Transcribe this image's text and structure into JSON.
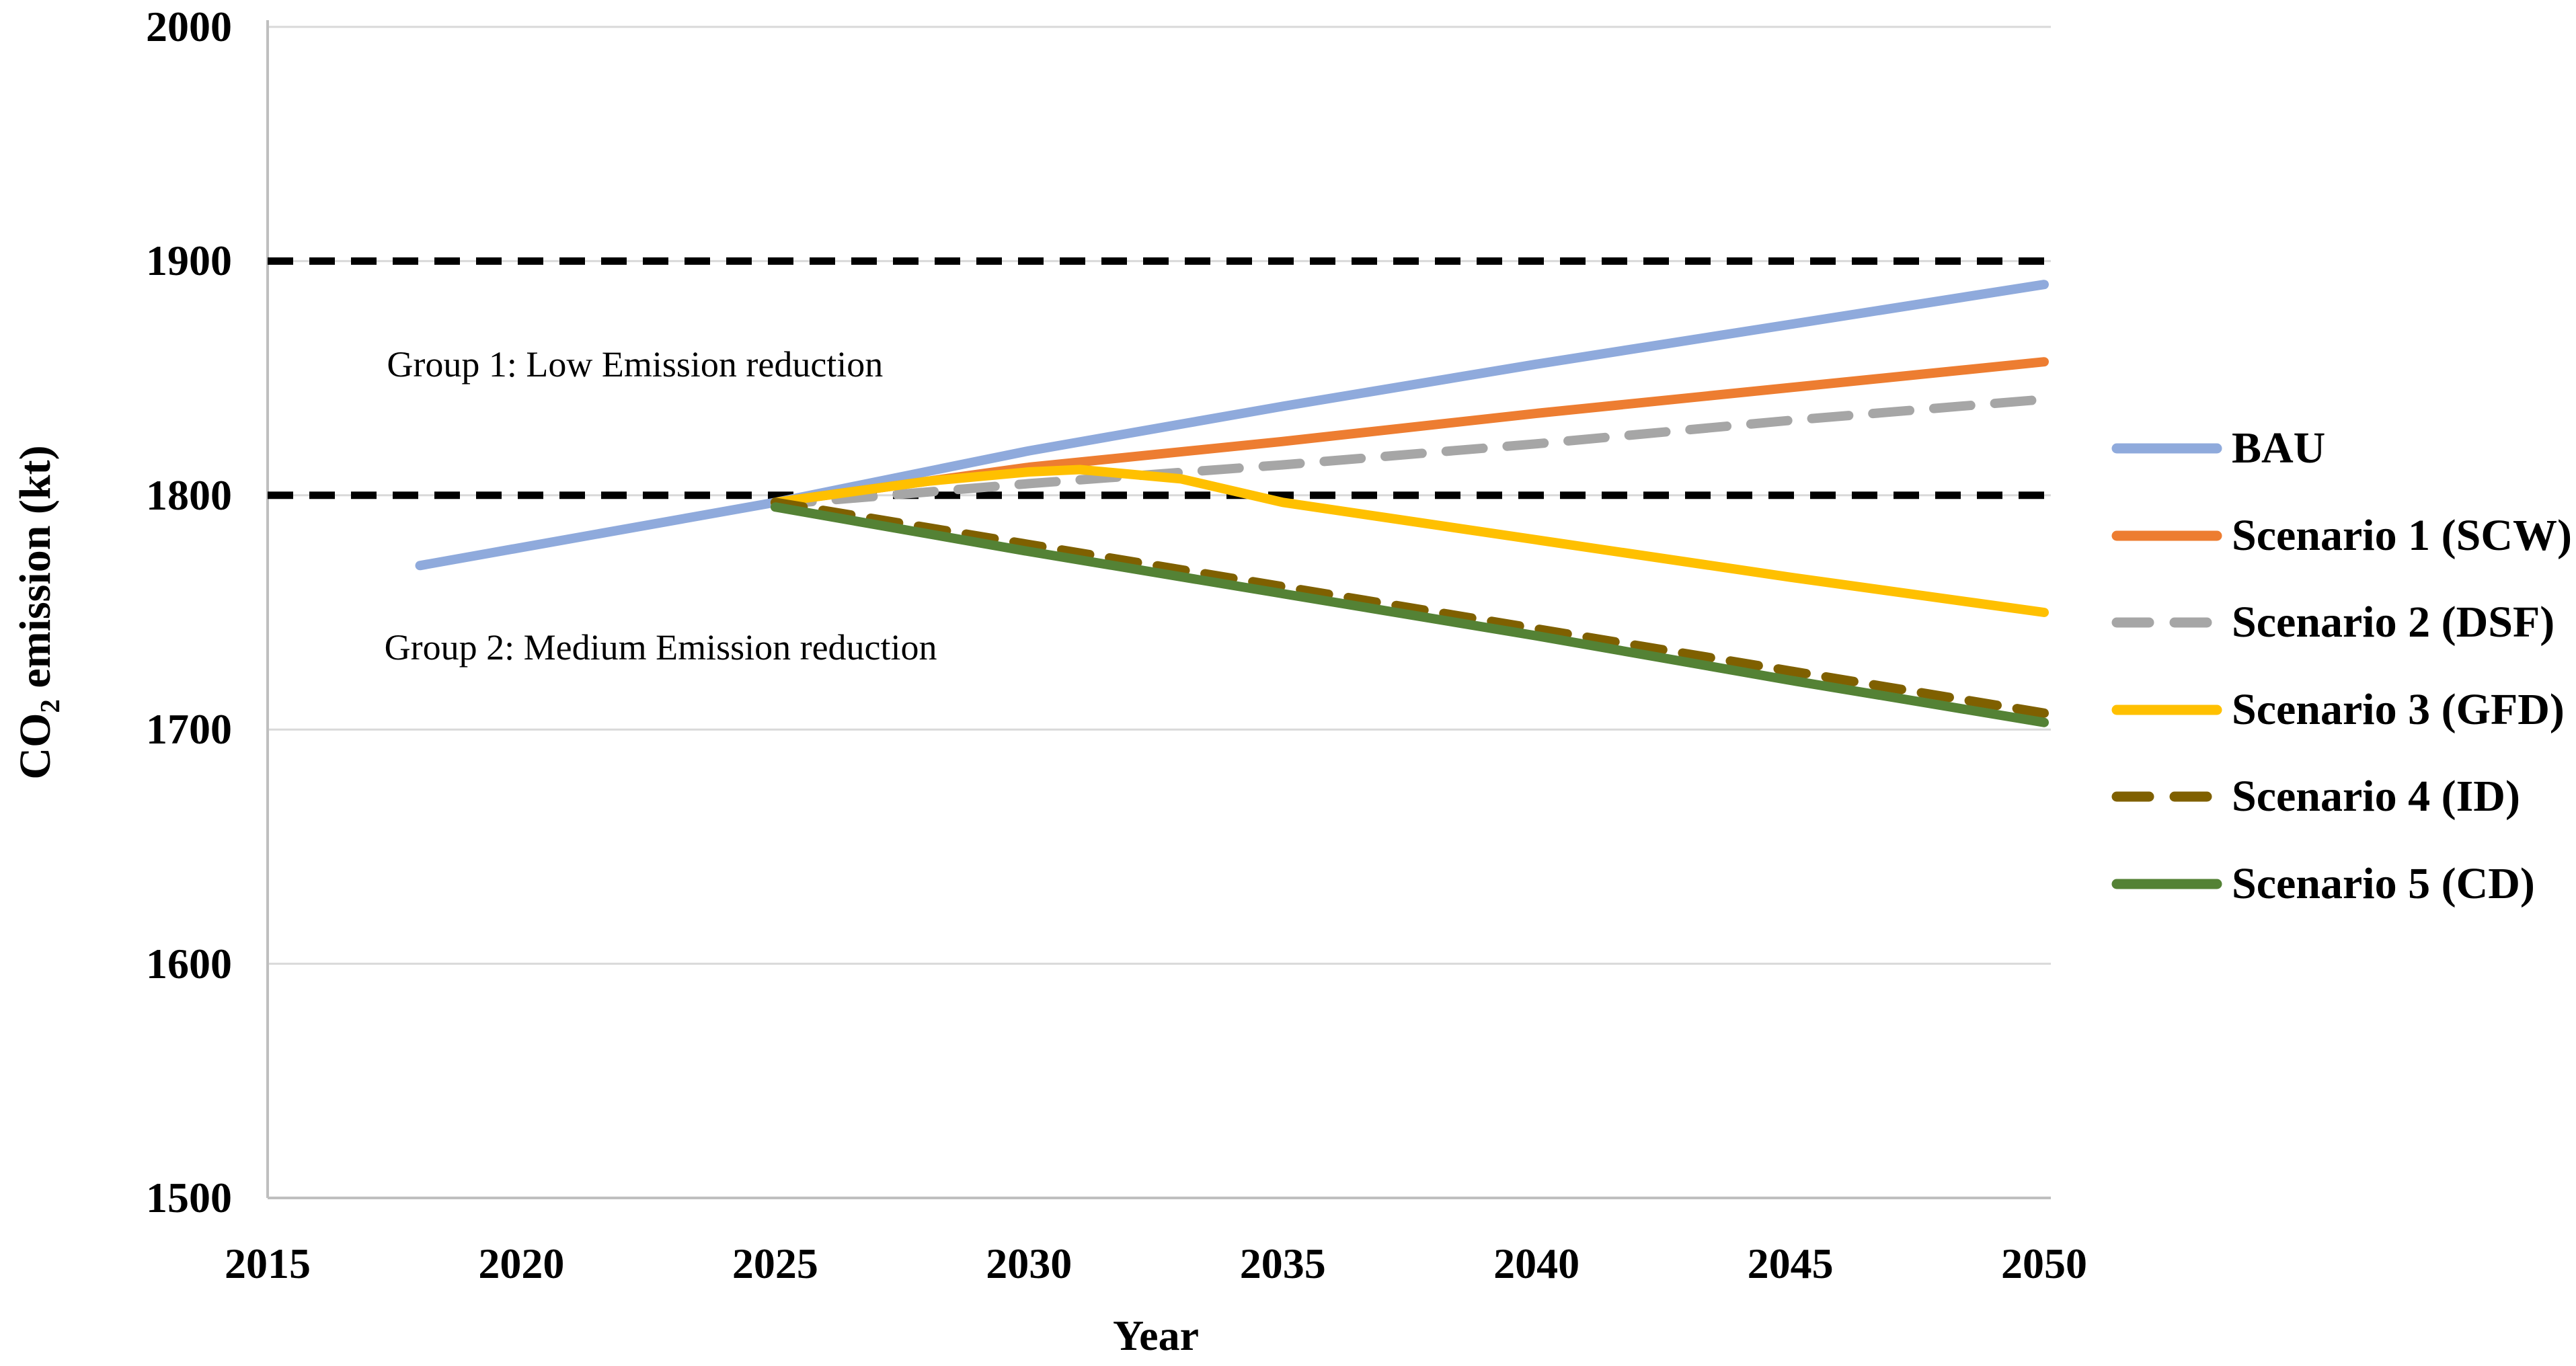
{
  "figure": {
    "x_axis_title": "Year",
    "y_axis_title_prefix": "CO",
    "y_axis_title_subscript": "2",
    "y_axis_title_suffix": " emission (kt)"
  },
  "colors": {
    "background": "#ffffff",
    "gridline": "#d9d9d9",
    "axis_line": "#bfbfbf",
    "reference_line": "#000000",
    "text": "#000000",
    "bau": "#8faadc",
    "scenario1": "#ed7d31",
    "scenario2": "#a6a6a6",
    "scenario3": "#ffc000",
    "scenario4": "#7f6000",
    "scenario5": "#548235"
  },
  "chart_data": {
    "type": "line",
    "title": "",
    "xlabel": "Year",
    "ylabel": "CO2 emission (kt)",
    "xlim": [
      2015,
      2050
    ],
    "ylim": [
      1500,
      2000
    ],
    "x_ticks": [
      "2015",
      "2020",
      "2025",
      "2030",
      "2035",
      "2040",
      "2045",
      "2050"
    ],
    "y_ticks": [
      "1500",
      "1600",
      "1700",
      "1800",
      "1900",
      "2000"
    ],
    "grid": "horizontal",
    "legend_position": "right",
    "reference_lines": [
      {
        "name": "upper-threshold",
        "value": 1900,
        "style": "dashed",
        "color_key": "reference_line"
      },
      {
        "name": "lower-threshold",
        "value": 1800,
        "style": "dashed",
        "color_key": "reference_line"
      }
    ],
    "annotations": [
      {
        "name": "group-1-label",
        "text": "Group 1: Low Emission reduction",
        "x": 2017.35,
        "y": 1856
      },
      {
        "name": "group-2-label",
        "text": "Group 2: Medium Emission reduction",
        "x": 2017.3,
        "y": 1735
      }
    ],
    "series": [
      {
        "name": "BAU",
        "key": "bau",
        "color_key": "bau",
        "style": "solid",
        "points": [
          [
            2018,
            1770
          ],
          [
            2025,
            1797
          ],
          [
            2030,
            1819
          ],
          [
            2035,
            1838
          ],
          [
            2040,
            1856
          ],
          [
            2045,
            1873
          ],
          [
            2050,
            1890
          ]
        ]
      },
      {
        "name": "Scenario 1 (SCW)",
        "key": "scenario1",
        "color_key": "scenario1",
        "style": "solid",
        "points": [
          [
            2025,
            1797
          ],
          [
            2030,
            1812
          ],
          [
            2035,
            1823
          ],
          [
            2040,
            1835
          ],
          [
            2045,
            1846
          ],
          [
            2050,
            1857
          ]
        ]
      },
      {
        "name": "Scenario 2 (DSF)",
        "key": "scenario2",
        "color_key": "scenario2",
        "style": "dashed",
        "points": [
          [
            2025,
            1796
          ],
          [
            2030,
            1805
          ],
          [
            2035,
            1813
          ],
          [
            2040,
            1822
          ],
          [
            2045,
            1832
          ],
          [
            2050,
            1841
          ]
        ]
      },
      {
        "name": "Scenario 3 (GFD)",
        "key": "scenario3",
        "color_key": "scenario3",
        "style": "solid",
        "points": [
          [
            2025,
            1797
          ],
          [
            2028,
            1806
          ],
          [
            2030,
            1810
          ],
          [
            2031,
            1811
          ],
          [
            2033,
            1807
          ],
          [
            2035,
            1797
          ],
          [
            2040,
            1781
          ],
          [
            2045,
            1765
          ],
          [
            2050,
            1750
          ]
        ]
      },
      {
        "name": "Scenario 4 (ID)",
        "key": "scenario4",
        "color_key": "scenario4",
        "style": "dashed",
        "points": [
          [
            2025,
            1797
          ],
          [
            2030,
            1779
          ],
          [
            2035,
            1761
          ],
          [
            2040,
            1743
          ],
          [
            2045,
            1725
          ],
          [
            2050,
            1707
          ]
        ]
      },
      {
        "name": "Scenario 5 (CD)",
        "key": "scenario5",
        "color_key": "scenario5",
        "style": "solid",
        "points": [
          [
            2025,
            1795
          ],
          [
            2030,
            1776
          ],
          [
            2035,
            1758
          ],
          [
            2040,
            1740
          ],
          [
            2045,
            1721
          ],
          [
            2050,
            1703
          ]
        ]
      }
    ]
  }
}
